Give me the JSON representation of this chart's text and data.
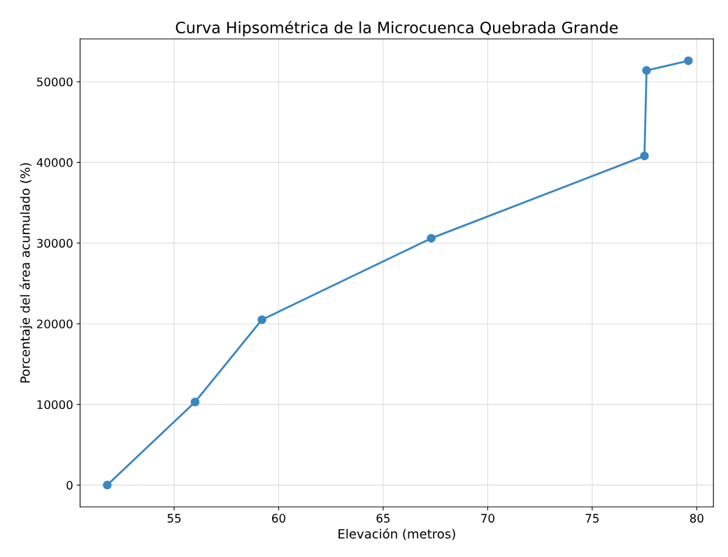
{
  "chart_data": {
    "type": "line",
    "title": "Curva Hipsométrica de la Microcuenca Quebrada Grande",
    "xlabel": "Elevación (metros)",
    "ylabel": "Porcentaje del área acumulado (%)",
    "x": [
      51.8,
      56.0,
      59.2,
      67.3,
      77.5,
      77.6,
      79.6
    ],
    "series": [
      {
        "color": "#3a87c0",
        "values": [
          0,
          10300,
          20500,
          30600,
          40800,
          51400,
          52600
        ]
      }
    ],
    "xlim": [
      50.5,
      80.8
    ],
    "ylim": [
      -2700,
      55300
    ],
    "xticks": [
      55,
      60,
      65,
      70,
      75,
      80
    ],
    "yticks": [
      0,
      10000,
      20000,
      30000,
      40000,
      50000
    ],
    "grid": true,
    "marker": "circle",
    "line_style": "solid"
  }
}
